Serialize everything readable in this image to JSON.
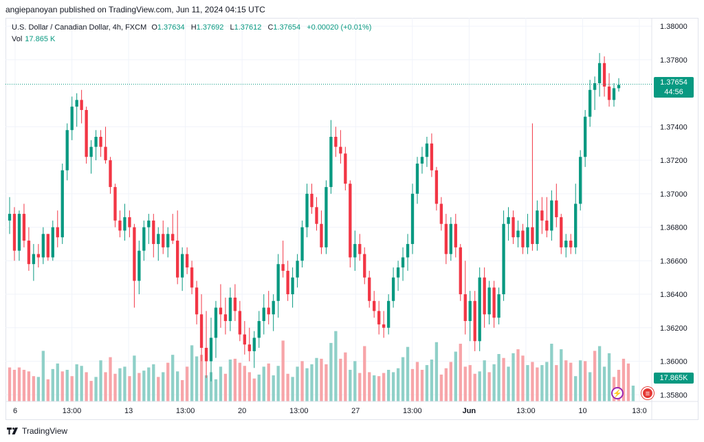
{
  "header": {
    "publish_line": "angiepanoyan published on TradingView.com, Jun 11, 2024 04:15 UTC"
  },
  "legend": {
    "symbol": "U.S. Dollar / Canadian Dollar, 4h, FXCM",
    "o_label": "O",
    "o_value": "1.37634",
    "h_label": "H",
    "h_value": "1.37692",
    "l_label": "L",
    "l_value": "1.37612",
    "c_label": "C",
    "c_value": "1.37654",
    "change": "+0.00020 (+0.01%)",
    "vol_label": "Vol",
    "vol_value": "17.865 K"
  },
  "price_tag": {
    "price": "1.37654",
    "countdown": "44:56"
  },
  "volume_tag": "17.865K",
  "footer": {
    "brand": "TradingView"
  },
  "colors": {
    "up": "#089981",
    "down": "#f23645",
    "vol_up": "#8fd0c8",
    "vol_down": "#f7a5a9",
    "grid": "#f0f3fa"
  },
  "chart_data": {
    "type": "candlestick",
    "y_ticks": [
      "1.38000",
      "1.37800",
      "1.37400",
      "1.37200",
      "1.37000",
      "1.36800",
      "1.36600",
      "1.36400",
      "1.36200",
      "1.36000",
      "1.35800"
    ],
    "ylim": [
      1.3576,
      1.3805
    ],
    "x_ticks": [
      "6",
      "13:00",
      "13",
      "13:00",
      "20",
      "13:00",
      "27",
      "13:00",
      "Jun",
      "13:00",
      "10",
      "13:0"
    ],
    "last_price": 1.37654,
    "candles": [
      [
        1.3684,
        1.3698,
        1.3676,
        1.3688
      ],
      [
        1.3688,
        1.3692,
        1.366,
        1.3666
      ],
      [
        1.3666,
        1.369,
        1.366,
        1.3688
      ],
      [
        1.3688,
        1.3694,
        1.3668,
        1.3672
      ],
      [
        1.3672,
        1.368,
        1.3654,
        1.3658
      ],
      [
        1.3658,
        1.367,
        1.3648,
        1.3664
      ],
      [
        1.3664,
        1.367,
        1.3656,
        1.3662
      ],
      [
        1.3662,
        1.368,
        1.3658,
        1.3676
      ],
      [
        1.3676,
        1.3676,
        1.366,
        1.3662
      ],
      [
        1.3662,
        1.3684,
        1.366,
        1.368
      ],
      [
        1.368,
        1.369,
        1.3668,
        1.3674
      ],
      [
        1.3674,
        1.3718,
        1.367,
        1.3714
      ],
      [
        1.3714,
        1.3742,
        1.3708,
        1.3738
      ],
      [
        1.3738,
        1.3758,
        1.3732,
        1.3752
      ],
      [
        1.3752,
        1.376,
        1.374,
        1.3756
      ],
      [
        1.3756,
        1.3762,
        1.3742,
        1.375
      ],
      [
        1.375,
        1.3752,
        1.3718,
        1.3722
      ],
      [
        1.3722,
        1.3732,
        1.3712,
        1.3728
      ],
      [
        1.3728,
        1.3738,
        1.372,
        1.3734
      ],
      [
        1.3734,
        1.3738,
        1.3722,
        1.3728
      ],
      [
        1.3728,
        1.374,
        1.3718,
        1.372
      ],
      [
        1.372,
        1.3722,
        1.37,
        1.3704
      ],
      [
        1.3704,
        1.3706,
        1.368,
        1.3684
      ],
      [
        1.3684,
        1.369,
        1.3674,
        1.3678
      ],
      [
        1.3678,
        1.3694,
        1.3672,
        1.3686
      ],
      [
        1.3686,
        1.369,
        1.3674,
        1.368
      ],
      [
        1.368,
        1.3682,
        1.3632,
        1.3648
      ],
      [
        1.3648,
        1.3672,
        1.364,
        1.3666
      ],
      [
        1.3666,
        1.3684,
        1.366,
        1.368
      ],
      [
        1.368,
        1.3688,
        1.367,
        1.3684
      ],
      [
        1.3684,
        1.3688,
        1.3662,
        1.367
      ],
      [
        1.367,
        1.368,
        1.366,
        1.3676
      ],
      [
        1.3676,
        1.3684,
        1.3664,
        1.3668
      ],
      [
        1.3668,
        1.368,
        1.3662,
        1.3676
      ],
      [
        1.3676,
        1.3688,
        1.367,
        1.3672
      ],
      [
        1.3672,
        1.369,
        1.3646,
        1.365
      ],
      [
        1.365,
        1.3668,
        1.3642,
        1.3664
      ],
      [
        1.3664,
        1.3668,
        1.3652,
        1.3656
      ],
      [
        1.3656,
        1.366,
        1.364,
        1.3644
      ],
      [
        1.3644,
        1.3648,
        1.3622,
        1.3628
      ],
      [
        1.3628,
        1.364,
        1.36,
        1.3608
      ],
      [
        1.3608,
        1.363,
        1.359,
        1.36
      ],
      [
        1.36,
        1.3626,
        1.3588,
        1.3614
      ],
      [
        1.3614,
        1.3636,
        1.3602,
        1.3632
      ],
      [
        1.3632,
        1.3646,
        1.362,
        1.3628
      ],
      [
        1.3628,
        1.3638,
        1.3616,
        1.3624
      ],
      [
        1.3624,
        1.3644,
        1.3618,
        1.3638
      ],
      [
        1.3638,
        1.3646,
        1.3624,
        1.363
      ],
      [
        1.363,
        1.3636,
        1.3612,
        1.3616
      ],
      [
        1.3616,
        1.3624,
        1.3604,
        1.361
      ],
      [
        1.361,
        1.362,
        1.36,
        1.3606
      ],
      [
        1.3606,
        1.3618,
        1.3596,
        1.3614
      ],
      [
        1.3614,
        1.363,
        1.3608,
        1.3624
      ],
      [
        1.3624,
        1.364,
        1.3616,
        1.3632
      ],
      [
        1.3632,
        1.3642,
        1.3622,
        1.3628
      ],
      [
        1.3628,
        1.364,
        1.3618,
        1.3636
      ],
      [
        1.3636,
        1.3664,
        1.3626,
        1.3658
      ],
      [
        1.3658,
        1.3672,
        1.365,
        1.3654
      ],
      [
        1.3654,
        1.366,
        1.3636,
        1.364
      ],
      [
        1.364,
        1.3656,
        1.3632,
        1.365
      ],
      [
        1.365,
        1.3664,
        1.3644,
        1.366
      ],
      [
        1.366,
        1.3684,
        1.3656,
        1.368
      ],
      [
        1.368,
        1.3706,
        1.3674,
        1.37
      ],
      [
        1.37,
        1.3706,
        1.3688,
        1.3692
      ],
      [
        1.3692,
        1.3698,
        1.3678,
        1.3682
      ],
      [
        1.3682,
        1.369,
        1.3664,
        1.3668
      ],
      [
        1.3668,
        1.3708,
        1.3664,
        1.3704
      ],
      [
        1.3704,
        1.3744,
        1.37,
        1.3734
      ],
      [
        1.3734,
        1.374,
        1.3722,
        1.3728
      ],
      [
        1.3728,
        1.3738,
        1.3718,
        1.3724
      ],
      [
        1.3724,
        1.3728,
        1.3702,
        1.3706
      ],
      [
        1.3706,
        1.3708,
        1.3656,
        1.3662
      ],
      [
        1.3662,
        1.3678,
        1.3654,
        1.367
      ],
      [
        1.367,
        1.3676,
        1.366,
        1.3664
      ],
      [
        1.3664,
        1.3668,
        1.3646,
        1.365
      ],
      [
        1.365,
        1.3654,
        1.3632,
        1.3636
      ],
      [
        1.3636,
        1.3642,
        1.3626,
        1.363
      ],
      [
        1.363,
        1.3636,
        1.3616,
        1.3622
      ],
      [
        1.3622,
        1.363,
        1.3614,
        1.362
      ],
      [
        1.362,
        1.364,
        1.3616,
        1.3636
      ],
      [
        1.3636,
        1.3656,
        1.3632,
        1.365
      ],
      [
        1.365,
        1.366,
        1.3642,
        1.3656
      ],
      [
        1.3656,
        1.3668,
        1.3648,
        1.3662
      ],
      [
        1.3662,
        1.3676,
        1.3654,
        1.367
      ],
      [
        1.367,
        1.3706,
        1.3664,
        1.37
      ],
      [
        1.37,
        1.3722,
        1.3694,
        1.3718
      ],
      [
        1.3718,
        1.3728,
        1.3712,
        1.3722
      ],
      [
        1.3722,
        1.3734,
        1.3716,
        1.373
      ],
      [
        1.373,
        1.3736,
        1.371,
        1.3714
      ],
      [
        1.3714,
        1.3716,
        1.369,
        1.3694
      ],
      [
        1.3694,
        1.3698,
        1.3678,
        1.3682
      ],
      [
        1.3682,
        1.3688,
        1.3658,
        1.3664
      ],
      [
        1.3664,
        1.3686,
        1.366,
        1.3682
      ],
      [
        1.3682,
        1.3688,
        1.3662,
        1.3668
      ],
      [
        1.3668,
        1.367,
        1.3636,
        1.364
      ],
      [
        1.364,
        1.366,
        1.3616,
        1.3624
      ],
      [
        1.3624,
        1.3642,
        1.3612,
        1.3636
      ],
      [
        1.3636,
        1.3642,
        1.3606,
        1.3612
      ],
      [
        1.3612,
        1.3656,
        1.3606,
        1.365
      ],
      [
        1.365,
        1.3656,
        1.362,
        1.3628
      ],
      [
        1.3628,
        1.3648,
        1.3622,
        1.3644
      ],
      [
        1.3644,
        1.3648,
        1.362,
        1.3626
      ],
      [
        1.3626,
        1.3644,
        1.3622,
        1.364
      ],
      [
        1.364,
        1.369,
        1.3636,
        1.3682
      ],
      [
        1.3682,
        1.3692,
        1.3672,
        1.3686
      ],
      [
        1.3686,
        1.369,
        1.367,
        1.3674
      ],
      [
        1.3674,
        1.3684,
        1.3668,
        1.3678
      ],
      [
        1.3678,
        1.3682,
        1.3664,
        1.3668
      ],
      [
        1.3668,
        1.3688,
        1.3664,
        1.368
      ],
      [
        1.368,
        1.3742,
        1.3666,
        1.367
      ],
      [
        1.367,
        1.3696,
        1.3666,
        1.369
      ],
      [
        1.369,
        1.3698,
        1.3676,
        1.3684
      ],
      [
        1.3684,
        1.3698,
        1.3674,
        1.3678
      ],
      [
        1.3678,
        1.3702,
        1.3672,
        1.3696
      ],
      [
        1.3696,
        1.3706,
        1.368,
        1.3686
      ],
      [
        1.3686,
        1.3688,
        1.3664,
        1.3668
      ],
      [
        1.3668,
        1.3676,
        1.3662,
        1.3672
      ],
      [
        1.3672,
        1.3676,
        1.3664,
        1.3668
      ],
      [
        1.3668,
        1.3706,
        1.3664,
        1.3694
      ],
      [
        1.3694,
        1.3726,
        1.369,
        1.3722
      ],
      [
        1.3722,
        1.375,
        1.3716,
        1.3746
      ],
      [
        1.3746,
        1.3768,
        1.374,
        1.3762
      ],
      [
        1.3762,
        1.377,
        1.375,
        1.3766
      ],
      [
        1.3766,
        1.3784,
        1.3758,
        1.3778
      ],
      [
        1.3778,
        1.3782,
        1.3758,
        1.3764
      ],
      [
        1.3764,
        1.3772,
        1.3752,
        1.3756
      ],
      [
        1.3756,
        1.3766,
        1.3752,
        1.3763
      ],
      [
        1.3763,
        1.3769,
        1.3761,
        1.3765
      ]
    ],
    "volumes": [
      [
        0.43,
        0
      ],
      [
        0.4,
        0
      ],
      [
        0.43,
        0
      ],
      [
        0.4,
        0
      ],
      [
        0.38,
        0
      ],
      [
        0.32,
        0
      ],
      [
        0.31,
        1
      ],
      [
        0.64,
        1
      ],
      [
        0.28,
        0
      ],
      [
        0.41,
        1
      ],
      [
        0.48,
        1
      ],
      [
        0.38,
        0
      ],
      [
        0.4,
        1
      ],
      [
        0.32,
        0
      ],
      [
        0.47,
        1
      ],
      [
        0.45,
        1
      ],
      [
        0.37,
        0
      ],
      [
        0.26,
        0
      ],
      [
        0.31,
        1
      ],
      [
        0.52,
        1
      ],
      [
        0.37,
        0
      ],
      [
        0.56,
        0
      ],
      [
        0.35,
        0
      ],
      [
        0.42,
        1
      ],
      [
        0.44,
        1
      ],
      [
        0.32,
        0
      ],
      [
        0.58,
        1
      ],
      [
        0.36,
        0
      ],
      [
        0.39,
        1
      ],
      [
        0.43,
        1
      ],
      [
        0.47,
        1
      ],
      [
        0.31,
        0
      ],
      [
        0.37,
        1
      ],
      [
        0.49,
        0
      ],
      [
        0.59,
        1
      ],
      [
        0.38,
        1
      ],
      [
        0.27,
        0
      ],
      [
        0.44,
        0
      ],
      [
        0.71,
        1
      ],
      [
        0.57,
        1
      ],
      [
        0.59,
        0
      ],
      [
        0.33,
        1
      ],
      [
        0.37,
        1
      ],
      [
        0.28,
        1
      ],
      [
        0.44,
        1
      ],
      [
        0.35,
        0
      ],
      [
        0.53,
        1
      ],
      [
        0.54,
        0
      ],
      [
        0.49,
        0
      ],
      [
        0.45,
        0
      ],
      [
        0.37,
        0
      ],
      [
        0.29,
        0
      ],
      [
        0.34,
        1
      ],
      [
        0.44,
        1
      ],
      [
        0.48,
        0
      ],
      [
        0.33,
        1
      ],
      [
        0.45,
        1
      ],
      [
        0.77,
        0
      ],
      [
        0.35,
        0
      ],
      [
        0.31,
        1
      ],
      [
        0.44,
        1
      ],
      [
        0.51,
        0
      ],
      [
        0.42,
        1
      ],
      [
        0.47,
        1
      ],
      [
        0.55,
        1
      ],
      [
        0.54,
        0
      ],
      [
        0.47,
        0
      ],
      [
        0.74,
        1
      ],
      [
        0.89,
        1
      ],
      [
        0.54,
        0
      ],
      [
        0.62,
        0
      ],
      [
        0.4,
        1
      ],
      [
        0.51,
        1
      ],
      [
        0.36,
        0
      ],
      [
        0.7,
        0
      ],
      [
        0.37,
        0
      ],
      [
        0.33,
        1
      ],
      [
        0.32,
        0
      ],
      [
        0.36,
        0
      ],
      [
        0.4,
        1
      ],
      [
        0.37,
        1
      ],
      [
        0.42,
        1
      ],
      [
        0.56,
        1
      ],
      [
        0.69,
        1
      ],
      [
        0.41,
        0
      ],
      [
        0.5,
        0
      ],
      [
        0.4,
        0
      ],
      [
        0.46,
        1
      ],
      [
        0.53,
        1
      ],
      [
        0.75,
        1
      ],
      [
        0.34,
        0
      ],
      [
        0.42,
        0
      ],
      [
        0.5,
        0
      ],
      [
        0.63,
        1
      ],
      [
        0.73,
        0
      ],
      [
        0.44,
        0
      ],
      [
        0.46,
        0
      ],
      [
        0.35,
        0
      ],
      [
        0.38,
        1
      ],
      [
        0.52,
        1
      ],
      [
        0.37,
        0
      ],
      [
        0.47,
        1
      ],
      [
        0.6,
        1
      ],
      [
        0.55,
        0
      ],
      [
        0.44,
        1
      ],
      [
        0.61,
        1
      ],
      [
        0.66,
        0
      ],
      [
        0.58,
        0
      ],
      [
        0.46,
        1
      ],
      [
        0.5,
        0
      ],
      [
        0.43,
        0
      ],
      [
        0.46,
        1
      ],
      [
        0.5,
        1
      ],
      [
        0.73,
        1
      ],
      [
        0.46,
        0
      ],
      [
        0.66,
        1
      ],
      [
        0.52,
        0
      ],
      [
        0.49,
        0
      ],
      [
        0.32,
        1
      ],
      [
        0.52,
        1
      ],
      [
        0.51,
        0
      ],
      [
        0.37,
        1
      ],
      [
        0.64,
        0
      ],
      [
        0.7,
        1
      ],
      [
        0.44,
        1
      ],
      [
        0.61,
        1
      ],
      [
        0.31,
        0
      ],
      [
        0.4,
        0
      ],
      [
        0.54,
        0
      ],
      [
        0.48,
        0
      ],
      [
        0.2,
        1
      ]
    ]
  }
}
